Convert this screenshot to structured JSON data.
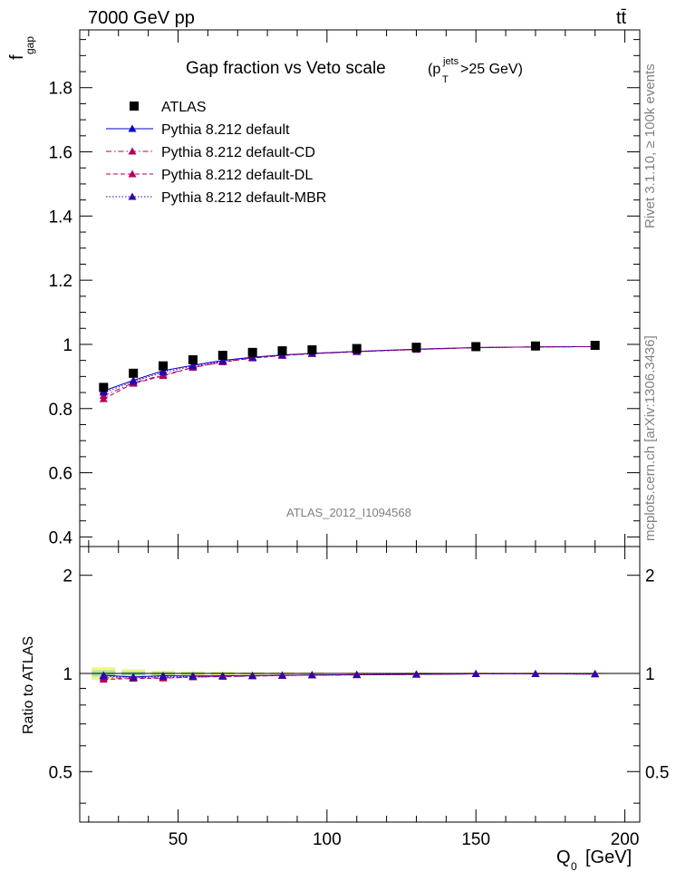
{
  "header": {
    "energy_label": "7000 GeV pp",
    "process_label": "tt̄"
  },
  "side_labels": {
    "rivet": "Rivet 3.1.10, ≥ 100k events",
    "mcplots": "mcplots.cern.ch [arXiv:1306.3436]"
  },
  "chart_data": {
    "type": "scatter",
    "title": "Gap fraction vs Veto scale",
    "title_cut": "(p",
    "title_cut_sup": "jets",
    "title_cut_sub": "T",
    "title_cut_tail": ">25 GeV)",
    "analysis_tag": "ATLAS_2012_I1094568",
    "xlabel": "Q",
    "xlabel_sub": "0",
    "xlabel_unit": "[GeV]",
    "ylabel": "f",
    "ylabel_sub": "gap",
    "ratio_ylabel": "Ratio to ATLAS",
    "xlim": [
      17,
      205
    ],
    "ylim": [
      0.37,
      1.98
    ],
    "ratio_ylim": [
      0.35,
      2.45
    ],
    "x_ticks": [
      50,
      100,
      150,
      200
    ],
    "y_ticks": [
      0.4,
      0.6,
      0.8,
      1,
      1.2,
      1.4,
      1.6,
      1.8
    ],
    "ratio_ticks": [
      0.5,
      1,
      2
    ],
    "legend_position": "top-left",
    "x": [
      25,
      35,
      45,
      55,
      65,
      75,
      85,
      95,
      110,
      130,
      150,
      170,
      190
    ],
    "data": {
      "name": "ATLAS",
      "values": [
        0.866,
        0.91,
        0.933,
        0.952,
        0.966,
        0.975,
        0.98,
        0.983,
        0.987,
        0.991,
        0.993,
        0.995,
        0.997
      ],
      "color": "#000000"
    },
    "series": [
      {
        "name": "Pythia 8.212 default",
        "values": [
          0.855,
          0.888,
          0.918,
          0.935,
          0.95,
          0.96,
          0.967,
          0.972,
          0.978,
          0.985,
          0.99,
          0.992,
          0.993
        ],
        "color": "#0000cc",
        "dash": "solid"
      },
      {
        "name": "Pythia 8.212 default-CD",
        "values": [
          0.84,
          0.88,
          0.905,
          0.928,
          0.945,
          0.958,
          0.966,
          0.971,
          0.977,
          0.984,
          0.99,
          0.992,
          0.993
        ],
        "color": "#b0005e",
        "dash": "dashdot"
      },
      {
        "name": "Pythia 8.212 default-DL",
        "values": [
          0.83,
          0.878,
          0.902,
          0.928,
          0.945,
          0.957,
          0.965,
          0.971,
          0.977,
          0.984,
          0.99,
          0.992,
          0.993
        ],
        "color": "#b0005e",
        "dash": "dashed"
      },
      {
        "name": "Pythia 8.212 default-MBR",
        "values": [
          0.85,
          0.884,
          0.913,
          0.932,
          0.948,
          0.959,
          0.966,
          0.972,
          0.978,
          0.985,
          0.99,
          0.992,
          0.993
        ],
        "color": "#3300aa",
        "dash": "dotted"
      }
    ]
  }
}
